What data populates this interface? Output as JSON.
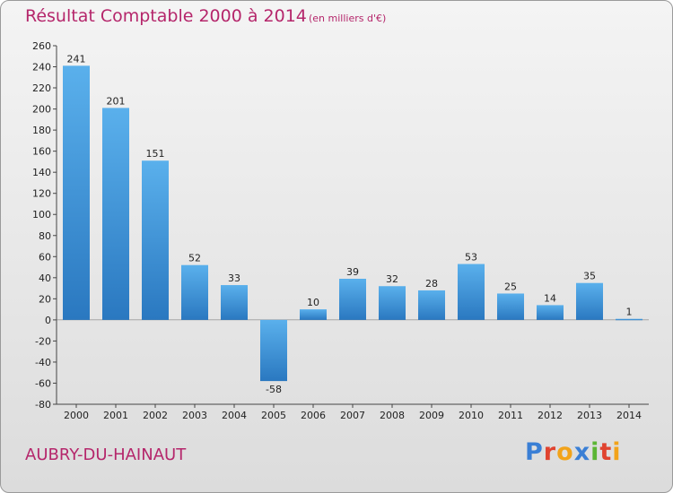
{
  "title": "Résultat Comptable 2000 à 2014",
  "subtitle": "(en milliers d'€)",
  "town": "AUBRY-DU-HAINAUT",
  "logo": {
    "letters": [
      "P",
      "r",
      "o",
      "x",
      "i",
      "t",
      "i"
    ],
    "colors": [
      "#3a7fd5",
      "#e0432f",
      "#f2a31a",
      "#3a7fd5",
      "#5bb534",
      "#e0432f",
      "#f2a31a"
    ]
  },
  "colors": {
    "title": "#b5266b",
    "bar_top": "#5ab0ec",
    "bar_bottom": "#2a78c0"
  },
  "chart_data": {
    "type": "bar",
    "title": "Résultat Comptable 2000 à 2014",
    "categories": [
      "2000",
      "2001",
      "2002",
      "2003",
      "2004",
      "2005",
      "2006",
      "2007",
      "2008",
      "2009",
      "2010",
      "2011",
      "2012",
      "2013",
      "2014"
    ],
    "values": [
      241,
      201,
      151,
      52,
      33,
      -58,
      10,
      39,
      32,
      28,
      53,
      25,
      14,
      35,
      1
    ],
    "ylim": [
      -80,
      260
    ],
    "yticks": [
      260,
      240,
      220,
      200,
      180,
      160,
      140,
      120,
      100,
      80,
      60,
      40,
      20,
      0,
      -20,
      -40,
      -60,
      -80
    ],
    "grid": false
  }
}
